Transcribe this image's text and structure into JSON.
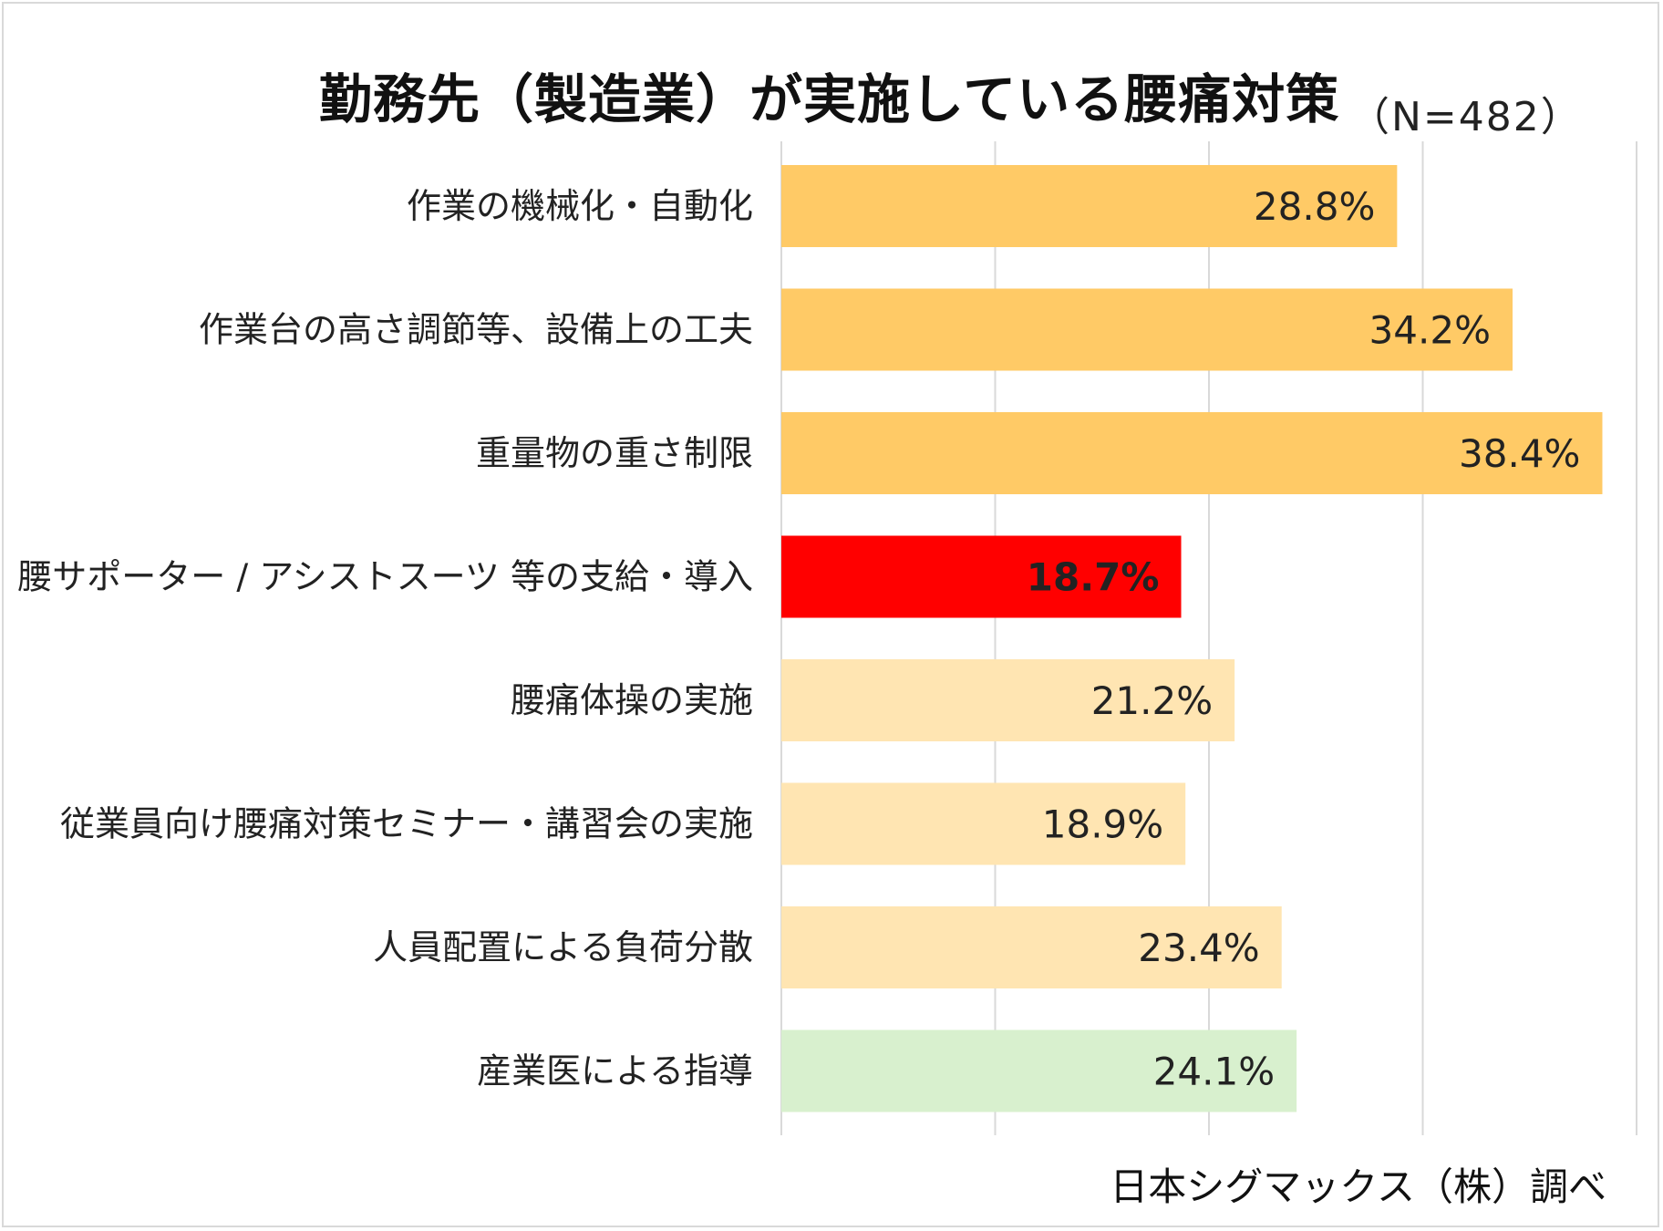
{
  "title": "勤務先（製造業）が実施している腰痛対策",
  "subtitle": "（N=482）",
  "source": "日本シグマックス（株）調べ",
  "colors": {
    "dark_orange": "#FFCA66",
    "light_orange": "#FFE5B2",
    "highlight_red": "#FF0000",
    "light_green": "#D8F0CE",
    "grid": "#d9d9d9"
  },
  "chart_data": {
    "type": "bar",
    "orientation": "horizontal",
    "title": "勤務先（製造業）が実施している腰痛対策",
    "subtitle": "（N=482）",
    "xlabel": "",
    "ylabel": "",
    "xlim": [
      0,
      40
    ],
    "grid": true,
    "unit": "%",
    "categories": [
      "作業の機械化・自動化",
      "作業台の高さ調節等、設備上の工夫",
      "重量物の重さ制限",
      "腰サポーター / アシストスーツ 等の支給・導入",
      "腰痛体操の実施",
      "従業員向け腰痛対策セミナー・講習会の実施",
      "人員配置による負荷分散",
      "産業医による指導"
    ],
    "values": [
      28.8,
      34.2,
      38.4,
      18.7,
      21.2,
      18.9,
      23.4,
      24.1
    ],
    "labels": [
      "28.8%",
      "34.2%",
      "38.4%",
      "18.7%",
      "21.2%",
      "18.9%",
      "23.4%",
      "24.1%"
    ],
    "bar_colors": [
      "dark_orange",
      "dark_orange",
      "dark_orange",
      "highlight_red",
      "light_orange",
      "light_orange",
      "light_orange",
      "light_green"
    ],
    "label_colors": [
      "#222222",
      "#222222",
      "#222222",
      "#ffffff",
      "#222222",
      "#222222",
      "#222222",
      "#222222"
    ],
    "label_bold": [
      false,
      false,
      false,
      true,
      false,
      false,
      false,
      false
    ]
  }
}
